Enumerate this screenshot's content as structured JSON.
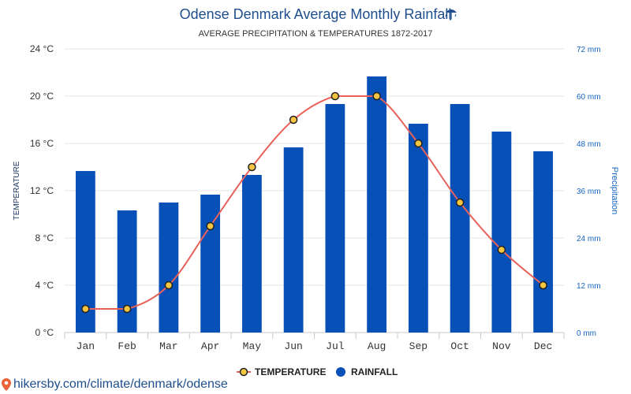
{
  "header": {
    "title": "Odense Denmark Average Monthly Rainfall",
    "subtitle": "AVERAGE PRECIPITATION & TEMPERATURES 1872-2017"
  },
  "colors": {
    "bar": "#0650b7",
    "line": "#e8625a",
    "marker_fill": "#f5c542",
    "grid": "#e6e6e6",
    "title": "#1f4e8c",
    "right_axis": "#1565c0"
  },
  "icons": {
    "title_icon": "umbrella-rain-icon",
    "source_icon": "location-pin-icon"
  },
  "chart_data": {
    "type": "bar",
    "categories": [
      "Jan",
      "Feb",
      "Mar",
      "Apr",
      "May",
      "Jun",
      "Jul",
      "Aug",
      "Sep",
      "Oct",
      "Nov",
      "Dec"
    ],
    "series": [
      {
        "name": "RAINFALL",
        "type": "bar",
        "axis": "right",
        "unit": "mm",
        "values": [
          41,
          31,
          33,
          35,
          40,
          47,
          58,
          65,
          53,
          58,
          51,
          46
        ]
      },
      {
        "name": "TEMPERATURE",
        "type": "line",
        "axis": "left",
        "unit": "°C",
        "values": [
          2,
          2,
          4,
          9,
          14,
          18,
          20,
          20,
          16,
          11,
          7,
          4
        ]
      }
    ],
    "y_left": {
      "label": "TEMPERATURE",
      "min": 0,
      "max": 24,
      "ticks": [
        "0 °C",
        "4 °C",
        "8 °C",
        "12 °C",
        "16 °C",
        "20 °C",
        "24 °C"
      ]
    },
    "y_right": {
      "label": "Precipitation",
      "min": 0,
      "max": 72,
      "ticks": [
        "0 mm",
        "12 mm",
        "24 mm",
        "36 mm",
        "48 mm",
        "60 mm",
        "72 mm"
      ]
    },
    "grid": true,
    "legend_position": "bottom-center",
    "legend": [
      "TEMPERATURE",
      "RAINFALL"
    ]
  },
  "footer": {
    "source_text": "hikersby.com/climate/denmark/odense"
  }
}
